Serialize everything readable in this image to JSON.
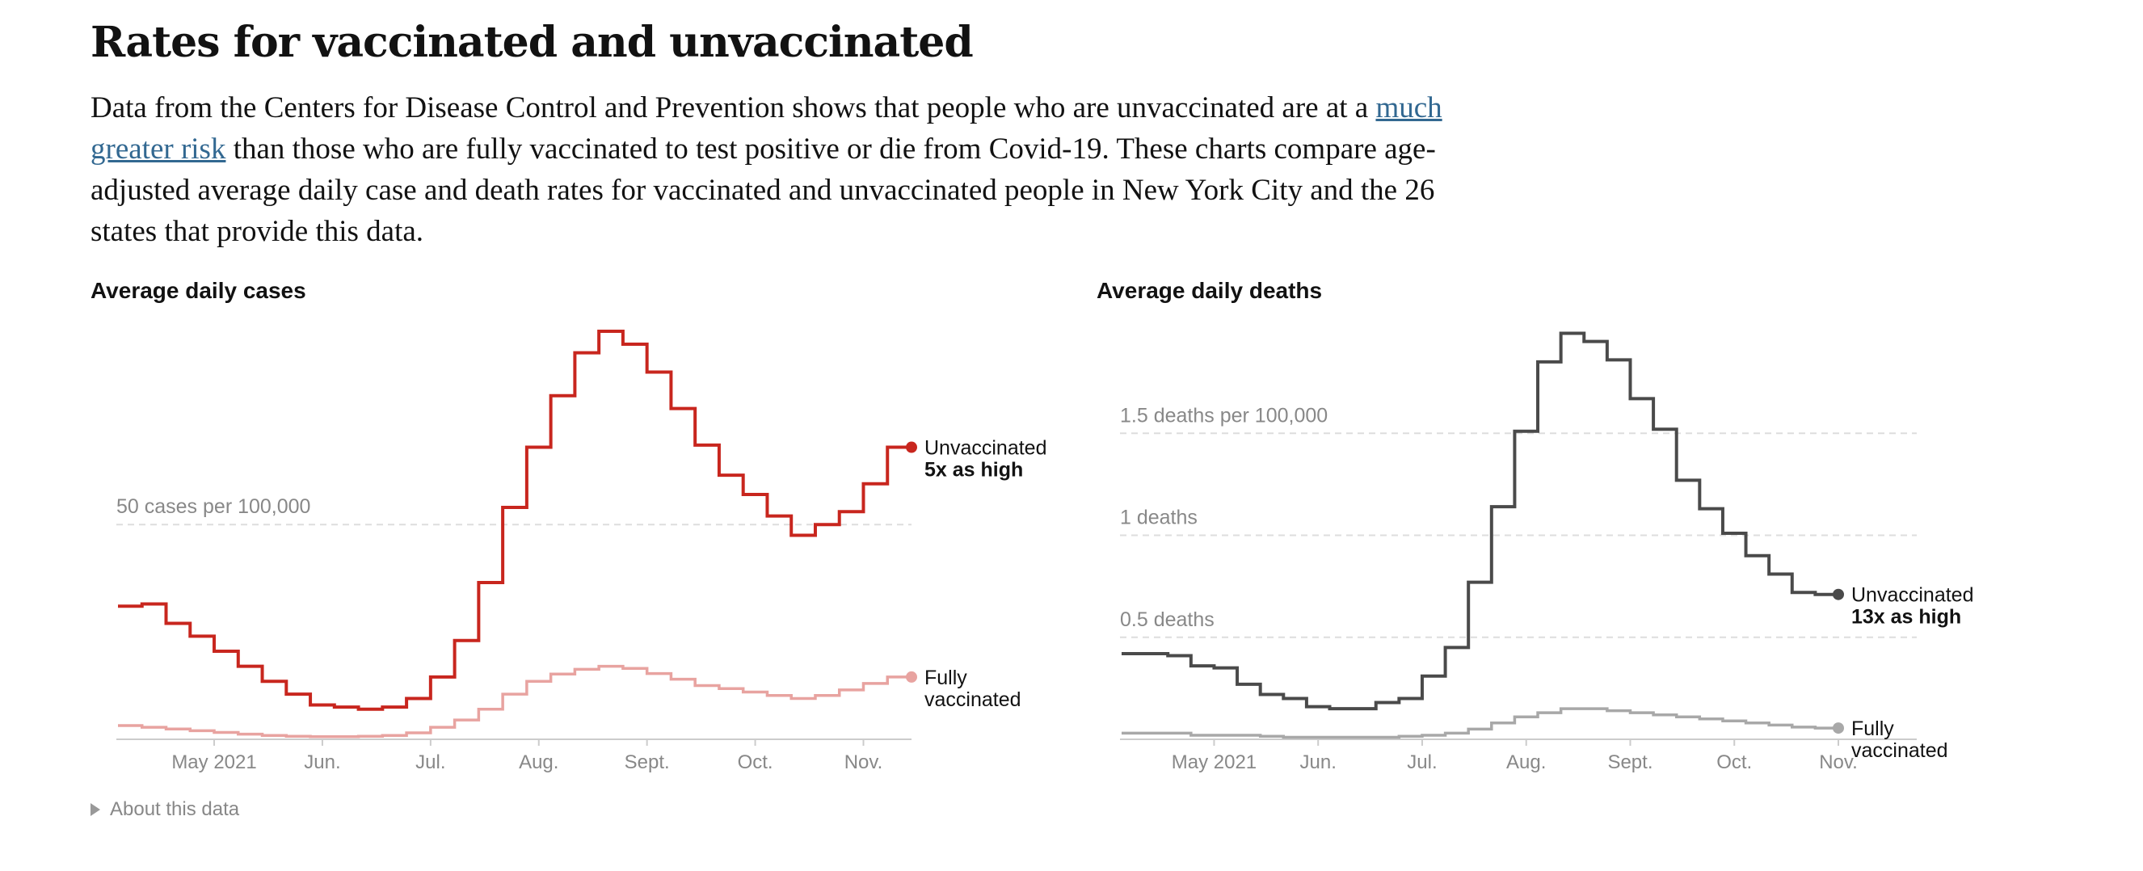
{
  "headline": "Rates for vaccinated and unvaccinated",
  "intro": {
    "before_link": "Data from the Centers for Disease Control and Prevention shows that people who are unvaccinated are at a ",
    "link_text": "much greater risk",
    "after_link": " than those who are fully vaccinated to test positive or die from Covid-19. These charts compare age-adjusted average daily case and death rates for vaccinated and unvaccinated people in New York City and the 26 states that provide this data."
  },
  "about_label": "About this data",
  "colors": {
    "cases_unvaccinated": "#c8261e",
    "cases_vaccinated": "#e8a3a0",
    "deaths_unvaccinated": "#4a4a4a",
    "deaths_vaccinated": "#a8a8a8",
    "gridline": "#dddddd",
    "axis": "#cccccc",
    "muted_text": "#888888"
  },
  "chart_data": [
    {
      "type": "line",
      "step": true,
      "title": "Average daily cases",
      "x_tick_labels": [
        "May 2021",
        "Jun.",
        "Jul.",
        "Aug.",
        "Sept.",
        "Oct.",
        "Nov."
      ],
      "x_tick_weeks": [
        4,
        8.5,
        13,
        17.5,
        22,
        26.5,
        31
      ],
      "ylim": [
        0,
        95
      ],
      "gridlines": [
        {
          "value": 50,
          "label": "50 cases per 100,000"
        }
      ],
      "series": [
        {
          "name": "Unvaccinated",
          "annotation": "5x as high",
          "values": [
            31,
            31.5,
            27,
            24,
            20.5,
            17,
            13.5,
            10.5,
            8,
            7.5,
            7,
            7.5,
            9.5,
            14.5,
            23,
            36.5,
            54,
            68,
            80,
            90,
            95,
            92,
            85.5,
            77,
            68.5,
            61.5,
            57,
            52,
            47.5,
            50,
            53,
            59.5,
            68
          ]
        },
        {
          "name": "Fully vaccinated",
          "annotation": "",
          "values": [
            3.2,
            2.8,
            2.4,
            2,
            1.6,
            1.2,
            0.9,
            0.7,
            0.6,
            0.6,
            0.7,
            0.9,
            1.5,
            2.8,
            4.5,
            7,
            10.5,
            13.5,
            15.2,
            16.3,
            17,
            16.5,
            15.3,
            14,
            12.5,
            11.8,
            11,
            10.2,
            9.5,
            10.2,
            11.5,
            13,
            14.5
          ]
        }
      ]
    },
    {
      "type": "line",
      "step": true,
      "title": "Average daily deaths",
      "x_tick_labels": [
        "May 2021",
        "Jun.",
        "Jul.",
        "Aug.",
        "Sept.",
        "Oct.",
        "Nov."
      ],
      "x_tick_weeks": [
        4,
        8.5,
        13,
        17.5,
        22,
        26.5,
        31
      ],
      "ylim": [
        0,
        2
      ],
      "gridlines": [
        {
          "value": 1.5,
          "label": "1.5 deaths per 100,000"
        },
        {
          "value": 1,
          "label": "1 deaths"
        },
        {
          "value": 0.5,
          "label": "0.5 deaths"
        }
      ],
      "series": [
        {
          "name": "Unvaccinated",
          "annotation": "13x as high",
          "values": [
            0.42,
            0.42,
            0.41,
            0.36,
            0.35,
            0.27,
            0.22,
            0.2,
            0.16,
            0.15,
            0.15,
            0.18,
            0.2,
            0.31,
            0.45,
            0.77,
            1.14,
            1.51,
            1.85,
            1.99,
            1.95,
            1.86,
            1.67,
            1.52,
            1.27,
            1.13,
            1.01,
            0.9,
            0.81,
            0.72,
            0.71
          ]
        },
        {
          "name": "Fully vaccinated",
          "annotation": "",
          "values": [
            0.03,
            0.03,
            0.03,
            0.02,
            0.02,
            0.02,
            0.015,
            0.01,
            0.01,
            0.01,
            0.01,
            0.01,
            0.015,
            0.02,
            0.03,
            0.05,
            0.08,
            0.11,
            0.13,
            0.15,
            0.15,
            0.14,
            0.13,
            0.12,
            0.11,
            0.1,
            0.09,
            0.08,
            0.07,
            0.06,
            0.055
          ]
        }
      ]
    }
  ]
}
